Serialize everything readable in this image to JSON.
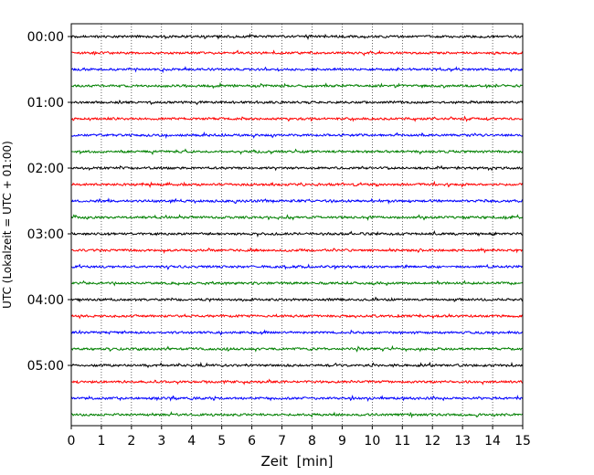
{
  "chart_data": {
    "type": "line",
    "title": "",
    "xlabel": "Zeit  [min]",
    "ylabel": "UTC (Lokalzeit = UTC + 01:00)",
    "xlim": [
      0,
      15
    ],
    "x_ticks": [
      0,
      1,
      2,
      3,
      4,
      5,
      6,
      7,
      8,
      9,
      10,
      11,
      12,
      13,
      14,
      15
    ],
    "x_tick_labels": [
      "0",
      "1",
      "2",
      "3",
      "4",
      "5",
      "6",
      "7",
      "8",
      "9",
      "10",
      "11",
      "12",
      "13",
      "14",
      "15"
    ],
    "y_tick_labels": [
      "00:00",
      "01:00",
      "02:00",
      "03:00",
      "04:00",
      "05:00"
    ],
    "y_tick_trace_indices": [
      0,
      4,
      8,
      12,
      16,
      20
    ],
    "x_grid": true,
    "grid_style": "dotted",
    "trace_minutes": 15,
    "traces": [
      {
        "start": "00:00",
        "color": "#000000"
      },
      {
        "start": "00:15",
        "color": "#ff0000"
      },
      {
        "start": "00:30",
        "color": "#0000ff"
      },
      {
        "start": "00:45",
        "color": "#008000"
      },
      {
        "start": "01:00",
        "color": "#000000"
      },
      {
        "start": "01:15",
        "color": "#ff0000"
      },
      {
        "start": "01:30",
        "color": "#0000ff"
      },
      {
        "start": "01:45",
        "color": "#008000"
      },
      {
        "start": "02:00",
        "color": "#000000"
      },
      {
        "start": "02:15",
        "color": "#ff0000"
      },
      {
        "start": "02:30",
        "color": "#0000ff"
      },
      {
        "start": "02:45",
        "color": "#008000"
      },
      {
        "start": "03:00",
        "color": "#000000"
      },
      {
        "start": "03:15",
        "color": "#ff0000"
      },
      {
        "start": "03:30",
        "color": "#0000ff"
      },
      {
        "start": "03:45",
        "color": "#008000"
      },
      {
        "start": "04:00",
        "color": "#000000"
      },
      {
        "start": "04:15",
        "color": "#ff0000"
      },
      {
        "start": "04:30",
        "color": "#0000ff"
      },
      {
        "start": "04:45",
        "color": "#008000"
      },
      {
        "start": "05:00",
        "color": "#000000"
      },
      {
        "start": "05:15",
        "color": "#ff0000"
      },
      {
        "start": "05:30",
        "color": "#0000ff"
      },
      {
        "start": "05:45",
        "color": "#008000"
      }
    ]
  }
}
